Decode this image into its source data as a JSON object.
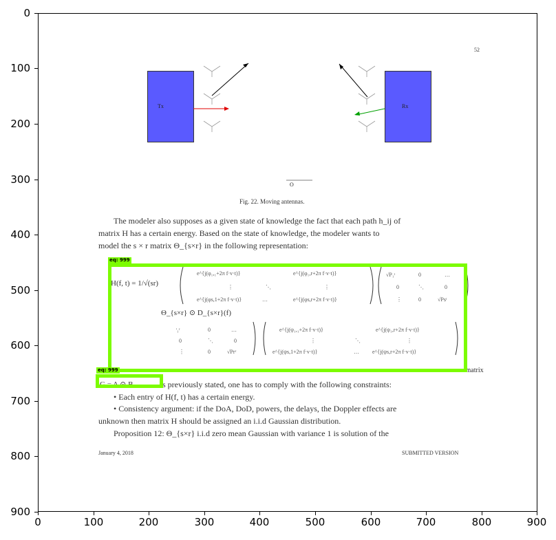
{
  "page": {
    "page_number": "52",
    "tx_label": "Tx",
    "rx_label": "Rx",
    "origin_label": "O",
    "figure_caption": "Fig. 22. Moving antennas.",
    "para1_line1": "The modeler also supposes as a given state of knowledge the fact that each path h_ij of",
    "para1_line2": "matrix H has a certain energy. Based on the state of knowledge, the modeler wants to",
    "para1_line3": "model the s × r matrix Θ_{s×r} in the following representation:",
    "eq_lhs": "H(f, t)  =  1/√(sr)",
    "eq_theta": "Θ_{s×r} ⊙ D_{s×r}(f)",
    "eq_line_after": "…  matrix",
    "line_g": "G = A ⊙ B",
    "line_g_rest": "s previously stated, one has to comply with the following constraints:",
    "bullet1": "• Each entry of H(f, t) has a certain energy.",
    "bullet2_line1": "• Consistency argument: if the DoA, DoD, powers, the delays, the Doppler effects are",
    "bullet2_line2": "unknown then matrix H should be assigned an i.i.d Gaussian distribution.",
    "proposition": "Proposition 12: Θ_{s×r} i.i.d zero mean Gaussian with variance 1 is solution of the",
    "footer_date": "January 4, 2018",
    "footer_version": "SUBMITTED VERSION"
  },
  "annotations": {
    "tag_eq": "eq: 999",
    "tag_eq2": "eq: 999"
  },
  "axes": {
    "x_ticks": [
      "0",
      "100",
      "200",
      "300",
      "400",
      "500",
      "600",
      "700",
      "800",
      "900"
    ],
    "y_ticks": [
      "0",
      "100",
      "200",
      "300",
      "400",
      "500",
      "600",
      "700",
      "800",
      "900"
    ]
  },
  "colors": {
    "box": "#7cfc00",
    "antenna_block": "#5a5aff",
    "tx_arrow": "#e00000",
    "rx_arrow": "#00a000"
  }
}
